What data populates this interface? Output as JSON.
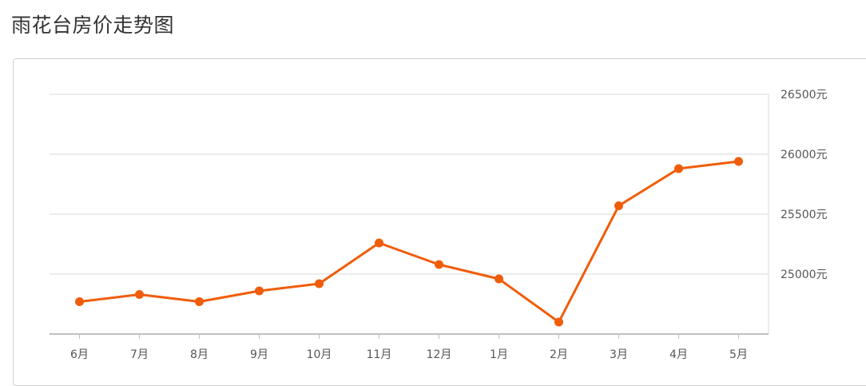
{
  "page": {
    "title": "雨花台房价走势图"
  },
  "colors": {
    "line": "#f05d0a",
    "grid": "#d9d9d9",
    "axis": "#bfbfbf",
    "text": "#555555"
  },
  "chart_data": {
    "type": "line",
    "title": "",
    "xlabel": "",
    "ylabel": "",
    "categories": [
      "6月",
      "7月",
      "8月",
      "9月",
      "10月",
      "11月",
      "12月",
      "1月",
      "2月",
      "3月",
      "4月",
      "5月"
    ],
    "series": [
      {
        "values": [
          24770,
          24830,
          24770,
          24860,
          24920,
          25260,
          25080,
          24960,
          24600,
          25570,
          25880,
          25940
        ]
      }
    ],
    "yticks": [
      25000,
      25500,
      26000,
      26500
    ],
    "ytick_labels": [
      "25000元",
      "25500元",
      "26000元",
      "26500元"
    ],
    "ylim": [
      24500,
      26500
    ],
    "y_axis_position": "right",
    "grid": true,
    "legend": "none"
  }
}
